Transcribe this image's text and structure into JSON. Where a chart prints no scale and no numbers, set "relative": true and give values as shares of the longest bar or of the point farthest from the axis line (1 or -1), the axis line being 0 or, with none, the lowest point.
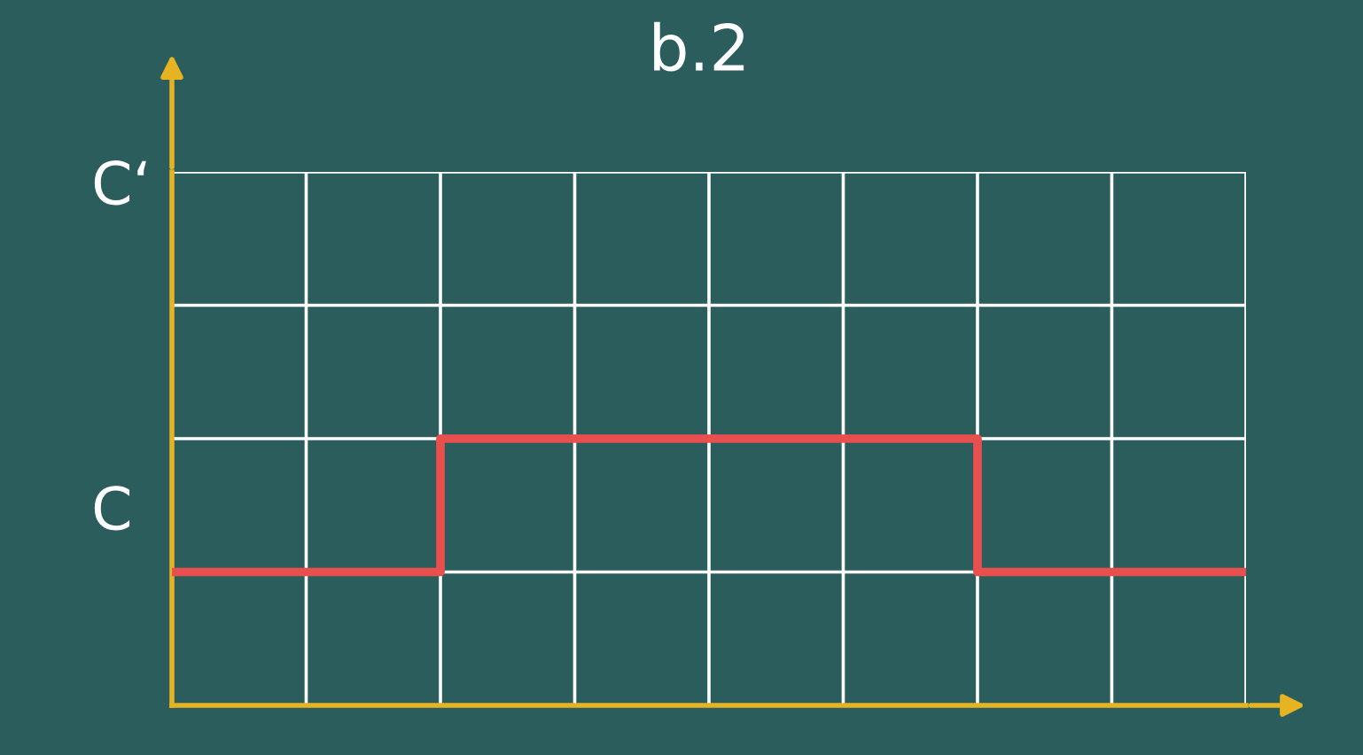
{
  "chart_data": {
    "type": "step",
    "title": "b.2",
    "categories": [
      null,
      null,
      null,
      null,
      null,
      null,
      null,
      null,
      null
    ],
    "series": [
      {
        "color": "#e8504f",
        "values": [
          0.5,
          0.5,
          1,
          1,
          1,
          1,
          0.5,
          0.5,
          0.5
        ]
      }
    ],
    "relative": true,
    "annotations": [
      "C‘",
      "C"
    ],
    "grid": true,
    "marker": "none",
    "line_style": "solid"
  }
}
